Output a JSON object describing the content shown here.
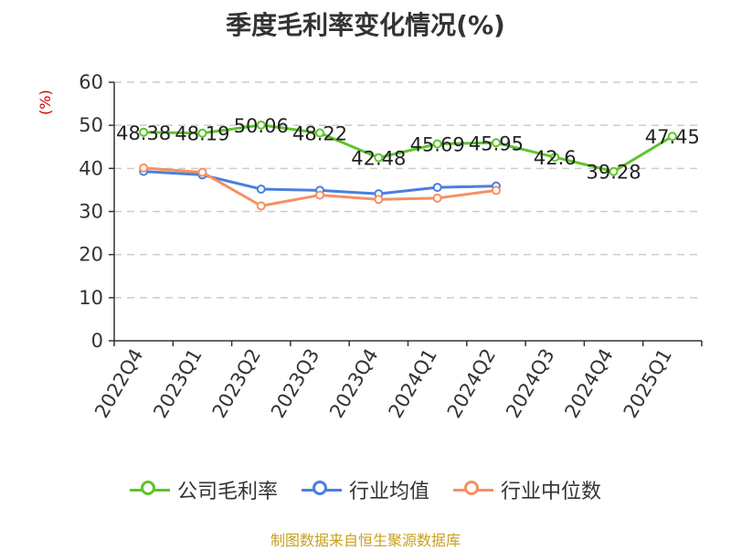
{
  "chart_data": {
    "type": "line",
    "title": "季度毛利率变化情况(%)",
    "ylabel": "(%)",
    "categories": [
      "2022Q4",
      "2023Q1",
      "2023Q2",
      "2023Q3",
      "2023Q4",
      "2024Q1",
      "2024Q2",
      "2024Q3",
      "2024Q4",
      "2025Q1"
    ],
    "y_ticks": [
      0,
      10,
      20,
      30,
      40,
      50,
      60
    ],
    "ylim": [
      0,
      60
    ],
    "grid": true,
    "legend_position": "bottom",
    "series": [
      {
        "name": "公司毛利率",
        "color": "#5ec42b",
        "values": [
          48.38,
          48.19,
          50.06,
          48.22,
          42.48,
          45.69,
          45.95,
          42.6,
          39.28,
          47.45
        ],
        "labels": [
          "48.38",
          "48.19",
          "50.06",
          "48.22",
          "42.48",
          "45.69",
          "45.95",
          "42.6",
          "39.28",
          "47.45"
        ]
      },
      {
        "name": "行业均值",
        "color": "#4a7fdc",
        "values": [
          39.3,
          38.5,
          35.2,
          34.9,
          34.1,
          35.6,
          35.9,
          null,
          null,
          null
        ]
      },
      {
        "name": "行业中位数",
        "color": "#f59062",
        "values": [
          40.1,
          39.1,
          31.3,
          33.8,
          32.8,
          33.1,
          34.9,
          null,
          null,
          null
        ]
      }
    ]
  },
  "footer": {
    "source": "制图数据来自恒生聚源数据库"
  }
}
